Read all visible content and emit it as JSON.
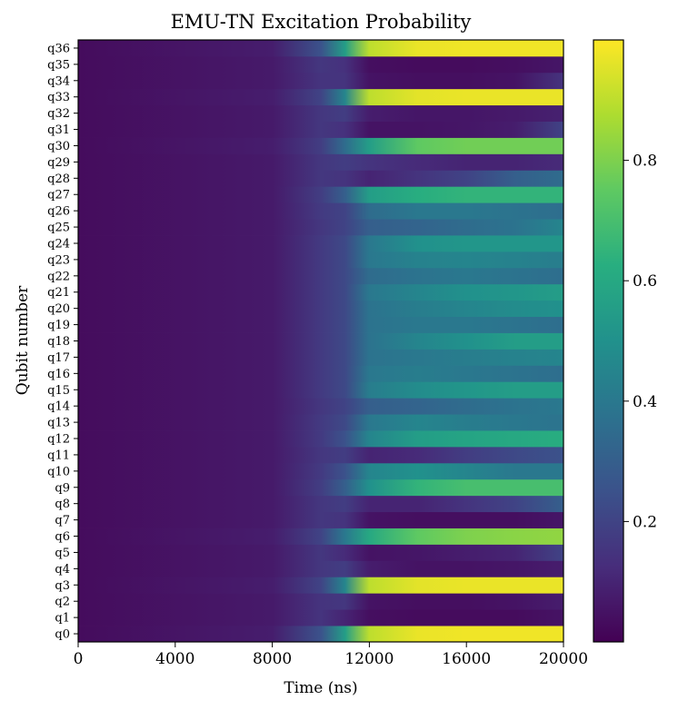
{
  "chart_data": {
    "type": "heatmap",
    "title": "EMU-TN Excitation Probability",
    "xlabel": "Time (ns)",
    "ylabel": "Qubit number",
    "xlim": [
      0,
      20000
    ],
    "x_ticks": [
      0,
      4000,
      8000,
      12000,
      16000,
      20000
    ],
    "x_tick_labels": [
      "0",
      "4000",
      "8000",
      "12000",
      "16000",
      "20000"
    ],
    "colormap": "viridis",
    "colorbar_range": [
      0,
      1
    ],
    "colorbar_ticks": [
      0.2,
      0.4,
      0.6,
      0.8
    ],
    "colorbar_tick_labels": [
      "0.2",
      "0.4",
      "0.6",
      "0.8"
    ],
    "rows": [
      "q0",
      "q1",
      "q2",
      "q3",
      "q4",
      "q5",
      "q6",
      "q7",
      "q8",
      "q9",
      "q10",
      "q11",
      "q12",
      "q13",
      "q14",
      "q15",
      "q16",
      "q17",
      "q18",
      "q19",
      "q20",
      "q21",
      "q22",
      "q23",
      "q24",
      "q25",
      "q26",
      "q27",
      "q28",
      "q29",
      "q30",
      "q31",
      "q32",
      "q33",
      "q34",
      "q35",
      "q36"
    ],
    "time_points": [
      0,
      8000,
      10000,
      11000,
      12000,
      14000,
      16000,
      18000,
      20000
    ],
    "excitation": [
      [
        0.03,
        0.08,
        0.25,
        0.55,
        0.9,
        0.97,
        0.98,
        0.98,
        0.98
      ],
      [
        0.03,
        0.07,
        0.15,
        0.1,
        0.04,
        0.03,
        0.03,
        0.03,
        0.05
      ],
      [
        0.03,
        0.07,
        0.15,
        0.16,
        0.05,
        0.04,
        0.04,
        0.05,
        0.08
      ],
      [
        0.03,
        0.08,
        0.2,
        0.45,
        0.9,
        0.96,
        0.97,
        0.97,
        0.97
      ],
      [
        0.03,
        0.07,
        0.16,
        0.18,
        0.08,
        0.05,
        0.05,
        0.06,
        0.08
      ],
      [
        0.03,
        0.07,
        0.16,
        0.12,
        0.05,
        0.06,
        0.08,
        0.1,
        0.2
      ],
      [
        0.03,
        0.08,
        0.2,
        0.4,
        0.6,
        0.75,
        0.8,
        0.82,
        0.83
      ],
      [
        0.03,
        0.07,
        0.16,
        0.15,
        0.05,
        0.04,
        0.04,
        0.04,
        0.06
      ],
      [
        0.03,
        0.07,
        0.16,
        0.18,
        0.1,
        0.1,
        0.15,
        0.2,
        0.3
      ],
      [
        0.03,
        0.07,
        0.18,
        0.3,
        0.5,
        0.65,
        0.7,
        0.7,
        0.7
      ],
      [
        0.03,
        0.07,
        0.17,
        0.25,
        0.45,
        0.5,
        0.45,
        0.4,
        0.4
      ],
      [
        0.03,
        0.07,
        0.16,
        0.18,
        0.1,
        0.12,
        0.18,
        0.22,
        0.25
      ],
      [
        0.03,
        0.07,
        0.17,
        0.25,
        0.45,
        0.55,
        0.58,
        0.6,
        0.62
      ],
      [
        0.03,
        0.07,
        0.17,
        0.22,
        0.4,
        0.45,
        0.42,
        0.4,
        0.38
      ],
      [
        0.03,
        0.07,
        0.16,
        0.2,
        0.3,
        0.32,
        0.35,
        0.38,
        0.4
      ],
      [
        0.03,
        0.07,
        0.17,
        0.22,
        0.42,
        0.48,
        0.52,
        0.55,
        0.55
      ],
      [
        0.03,
        0.07,
        0.17,
        0.22,
        0.4,
        0.42,
        0.4,
        0.38,
        0.36
      ],
      [
        0.03,
        0.07,
        0.17,
        0.22,
        0.38,
        0.4,
        0.42,
        0.44,
        0.45
      ],
      [
        0.03,
        0.07,
        0.17,
        0.22,
        0.38,
        0.45,
        0.5,
        0.55,
        0.55
      ],
      [
        0.03,
        0.07,
        0.17,
        0.22,
        0.38,
        0.4,
        0.4,
        0.38,
        0.36
      ],
      [
        0.03,
        0.07,
        0.17,
        0.22,
        0.38,
        0.42,
        0.45,
        0.48,
        0.5
      ],
      [
        0.03,
        0.07,
        0.17,
        0.22,
        0.4,
        0.45,
        0.5,
        0.52,
        0.55
      ],
      [
        0.03,
        0.07,
        0.17,
        0.22,
        0.35,
        0.38,
        0.4,
        0.38,
        0.36
      ],
      [
        0.03,
        0.07,
        0.17,
        0.22,
        0.4,
        0.44,
        0.45,
        0.44,
        0.42
      ],
      [
        0.03,
        0.07,
        0.17,
        0.22,
        0.4,
        0.5,
        0.52,
        0.52,
        0.52
      ],
      [
        0.03,
        0.07,
        0.16,
        0.2,
        0.3,
        0.32,
        0.35,
        0.38,
        0.45
      ],
      [
        0.03,
        0.07,
        0.17,
        0.2,
        0.35,
        0.4,
        0.4,
        0.38,
        0.36
      ],
      [
        0.03,
        0.07,
        0.18,
        0.3,
        0.55,
        0.62,
        0.65,
        0.65,
        0.65
      ],
      [
        0.03,
        0.07,
        0.16,
        0.15,
        0.1,
        0.15,
        0.2,
        0.3,
        0.35
      ],
      [
        0.03,
        0.07,
        0.16,
        0.18,
        0.15,
        0.12,
        0.1,
        0.1,
        0.12
      ],
      [
        0.03,
        0.08,
        0.18,
        0.35,
        0.55,
        0.75,
        0.78,
        0.78,
        0.78
      ],
      [
        0.03,
        0.07,
        0.16,
        0.14,
        0.05,
        0.05,
        0.06,
        0.08,
        0.2
      ],
      [
        0.03,
        0.07,
        0.16,
        0.18,
        0.08,
        0.06,
        0.06,
        0.07,
        0.09
      ],
      [
        0.03,
        0.08,
        0.2,
        0.45,
        0.9,
        0.96,
        0.97,
        0.97,
        0.97
      ],
      [
        0.03,
        0.07,
        0.15,
        0.15,
        0.05,
        0.04,
        0.04,
        0.05,
        0.15
      ],
      [
        0.03,
        0.07,
        0.16,
        0.14,
        0.04,
        0.03,
        0.03,
        0.04,
        0.06
      ],
      [
        0.03,
        0.08,
        0.25,
        0.55,
        0.9,
        0.97,
        0.98,
        0.98,
        0.98
      ]
    ]
  }
}
